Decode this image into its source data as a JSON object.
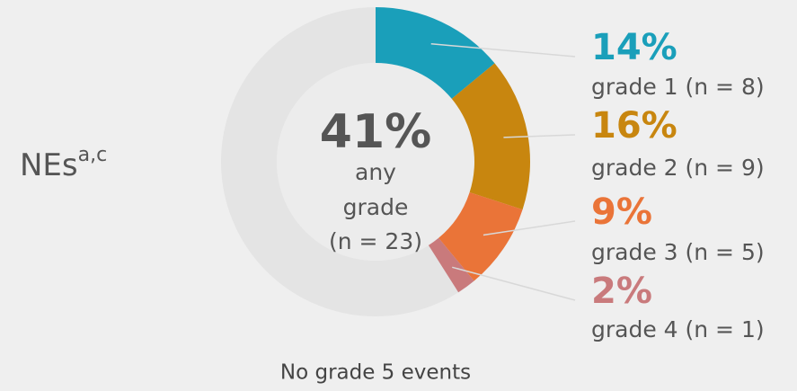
{
  "chart_data": {
    "type": "pie",
    "title": "NEs",
    "title_superscript": "a,c",
    "center_text": [
      "41%",
      "any",
      "grade",
      "(n = 23)"
    ],
    "categories": [
      "grade 1 (n = 8)",
      "grade 2 (n = 9)",
      "grade 3 (n = 5)",
      "grade 4 (n = 1)"
    ],
    "values": [
      14,
      16,
      9,
      2
    ],
    "value_labels": [
      "14%",
      "16%",
      "9%",
      "2%"
    ],
    "colors": [
      "#1a9fba",
      "#c8860f",
      "#ea7438",
      "#c97a7c"
    ],
    "footnote": "No grade 5 events"
  }
}
